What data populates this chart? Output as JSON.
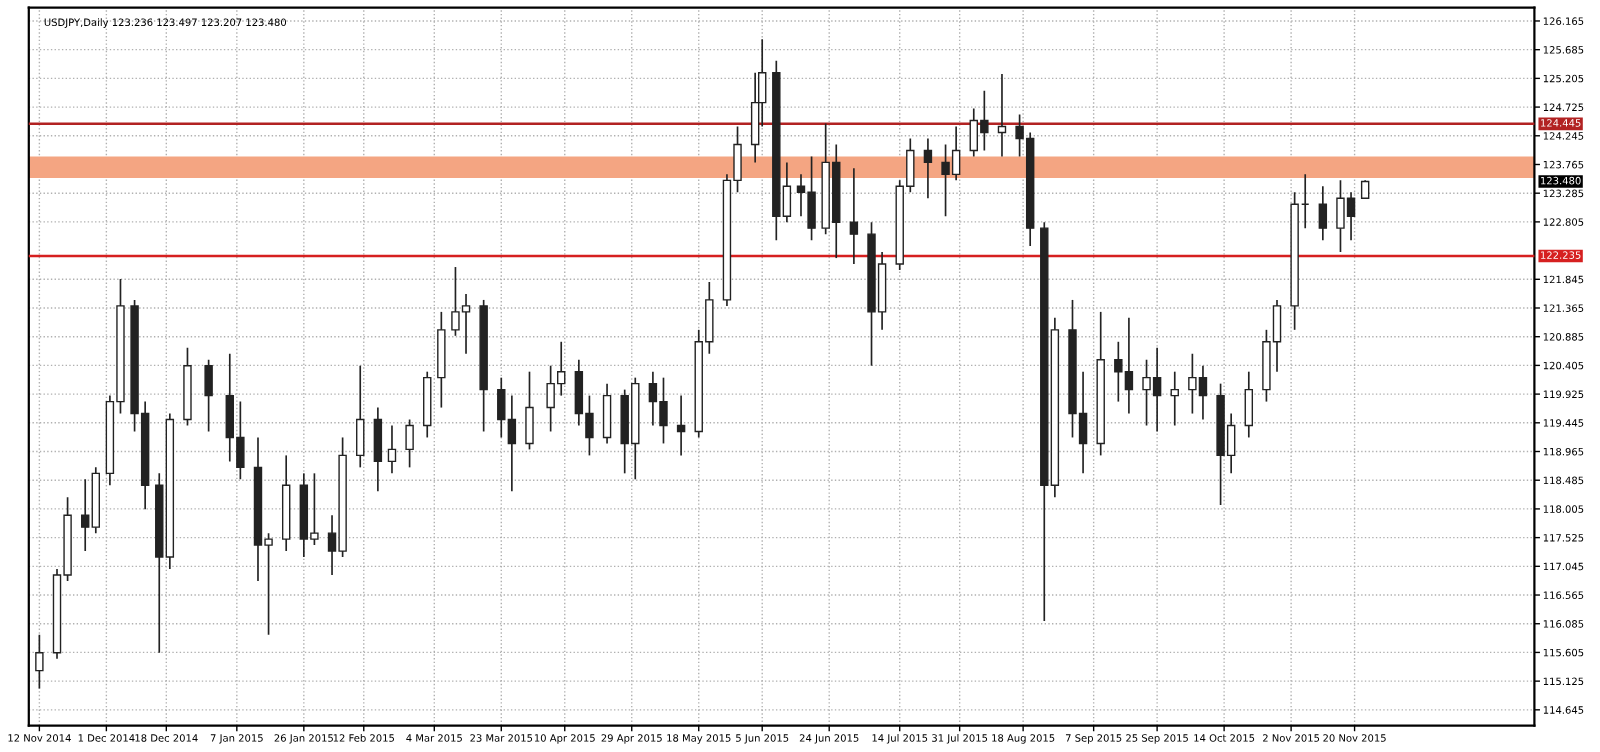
{
  "chart_data": {
    "type": "candlestick",
    "title": "USDJPY,Daily 123.236 123.497 123.207 123.480",
    "color": "#222222",
    "x": [
      "2014-11-12",
      "2014-11-17",
      "2014-11-20",
      "2014-11-25",
      "2014-11-28",
      "2014-12-02",
      "2014-12-05",
      "2014-12-09",
      "2014-12-12",
      "2014-12-16",
      "2014-12-19",
      "2014-12-24",
      "2014-12-30",
      "2015-01-05",
      "2015-01-08",
      "2015-01-13",
      "2015-01-16",
      "2015-01-21",
      "2015-01-26",
      "2015-01-29",
      "2015-02-03",
      "2015-02-06",
      "2015-02-11",
      "2015-02-16",
      "2015-02-20",
      "2015-02-25",
      "2015-03-02",
      "2015-03-06",
      "2015-03-10",
      "2015-03-13",
      "2015-03-18",
      "2015-03-23",
      "2015-03-26",
      "2015-03-31",
      "2015-04-06",
      "2015-04-09",
      "2015-04-14",
      "2015-04-17",
      "2015-04-22",
      "2015-04-27",
      "2015-04-30",
      "2015-05-05",
      "2015-05-08",
      "2015-05-13",
      "2015-05-18",
      "2015-05-21",
      "2015-05-26",
      "2015-05-29",
      "2015-06-03",
      "2015-06-05",
      "2015-06-09",
      "2015-06-12",
      "2015-06-16",
      "2015-06-19",
      "2015-06-23",
      "2015-06-26",
      "2015-07-01",
      "2015-07-06",
      "2015-07-09",
      "2015-07-14",
      "2015-07-17",
      "2015-07-22",
      "2015-07-27",
      "2015-07-30",
      "2015-08-04",
      "2015-08-07",
      "2015-08-12",
      "2015-08-17",
      "2015-08-20",
      "2015-08-24",
      "2015-08-27",
      "2015-09-01",
      "2015-09-04",
      "2015-09-09",
      "2015-09-14",
      "2015-09-17",
      "2015-09-22",
      "2015-09-25",
      "2015-09-30",
      "2015-10-05",
      "2015-10-08",
      "2015-10-13",
      "2015-10-16",
      "2015-10-21",
      "2015-10-26",
      "2015-10-29",
      "2015-11-03",
      "2015-11-06",
      "2015-11-11",
      "2015-11-16",
      "2015-11-19",
      "2015-11-23"
    ],
    "ohlc": [
      [
        115.3,
        115.9,
        115.0,
        115.6
      ],
      [
        115.6,
        117.0,
        115.5,
        116.9
      ],
      [
        116.9,
        118.2,
        116.8,
        117.9
      ],
      [
        117.9,
        118.5,
        117.3,
        117.7
      ],
      [
        117.7,
        118.7,
        117.6,
        118.6
      ],
      [
        118.6,
        119.9,
        118.4,
        119.8
      ],
      [
        119.8,
        121.85,
        119.6,
        121.4
      ],
      [
        121.4,
        121.5,
        119.3,
        119.6
      ],
      [
        119.6,
        119.8,
        118.0,
        118.4
      ],
      [
        118.4,
        118.6,
        115.6,
        117.2
      ],
      [
        117.2,
        119.6,
        117.0,
        119.5
      ],
      [
        119.5,
        120.7,
        119.4,
        120.4
      ],
      [
        120.4,
        120.5,
        119.3,
        119.9
      ],
      [
        119.9,
        120.6,
        118.8,
        119.2
      ],
      [
        119.2,
        119.8,
        118.5,
        118.7
      ],
      [
        118.7,
        119.2,
        116.8,
        117.4
      ],
      [
        117.4,
        117.6,
        115.9,
        117.5
      ],
      [
        117.5,
        118.9,
        117.3,
        118.4
      ],
      [
        118.4,
        118.6,
        117.2,
        117.5
      ],
      [
        117.5,
        118.6,
        117.4,
        117.6
      ],
      [
        117.6,
        117.9,
        116.9,
        117.3
      ],
      [
        117.3,
        119.2,
        117.2,
        118.9
      ],
      [
        118.9,
        120.4,
        118.7,
        119.5
      ],
      [
        119.5,
        119.7,
        118.3,
        118.8
      ],
      [
        118.8,
        119.4,
        118.6,
        119.0
      ],
      [
        119.0,
        119.5,
        118.7,
        119.4
      ],
      [
        119.4,
        120.3,
        119.2,
        120.2
      ],
      [
        120.2,
        121.3,
        119.7,
        121.0
      ],
      [
        121.0,
        122.05,
        120.9,
        121.3
      ],
      [
        121.3,
        121.6,
        120.6,
        121.4
      ],
      [
        121.4,
        121.5,
        119.3,
        120.0
      ],
      [
        120.0,
        120.2,
        119.2,
        119.5
      ],
      [
        119.5,
        119.9,
        118.3,
        119.1
      ],
      [
        119.1,
        120.3,
        119.0,
        119.7
      ],
      [
        119.7,
        120.4,
        119.3,
        120.1
      ],
      [
        120.1,
        120.8,
        119.9,
        120.3
      ],
      [
        120.3,
        120.5,
        119.4,
        119.6
      ],
      [
        119.6,
        119.9,
        118.9,
        119.2
      ],
      [
        119.2,
        120.1,
        119.1,
        119.9
      ],
      [
        119.9,
        120.0,
        118.6,
        119.1
      ],
      [
        119.1,
        120.2,
        118.5,
        120.1
      ],
      [
        120.1,
        120.3,
        119.4,
        119.8
      ],
      [
        119.8,
        120.2,
        119.1,
        119.4
      ],
      [
        119.4,
        119.9,
        118.9,
        119.3
      ],
      [
        119.3,
        121.0,
        119.2,
        120.8
      ],
      [
        120.8,
        121.8,
        120.6,
        121.5
      ],
      [
        121.5,
        123.6,
        121.4,
        123.5
      ],
      [
        123.5,
        124.4,
        123.3,
        124.1
      ],
      [
        124.1,
        125.3,
        123.8,
        124.8
      ],
      [
        124.8,
        125.86,
        124.4,
        125.3
      ],
      [
        125.3,
        125.5,
        122.5,
        122.9
      ],
      [
        122.9,
        123.8,
        122.8,
        123.4
      ],
      [
        123.4,
        123.6,
        122.9,
        123.3
      ],
      [
        123.3,
        123.9,
        122.5,
        122.7
      ],
      [
        122.7,
        124.45,
        122.6,
        123.8
      ],
      [
        123.8,
        124.1,
        122.2,
        122.8
      ],
      [
        122.8,
        123.7,
        122.1,
        122.6
      ],
      [
        122.6,
        122.8,
        120.4,
        121.3
      ],
      [
        121.3,
        122.3,
        121.0,
        122.1
      ],
      [
        122.1,
        123.5,
        122.0,
        123.4
      ],
      [
        123.4,
        124.2,
        123.3,
        124.0
      ],
      [
        124.0,
        124.2,
        123.2,
        123.8
      ],
      [
        123.8,
        124.1,
        122.9,
        123.6
      ],
      [
        123.6,
        124.4,
        123.5,
        124.0
      ],
      [
        124.0,
        124.7,
        123.9,
        124.5
      ],
      [
        124.5,
        125.0,
        124.0,
        124.3
      ],
      [
        124.3,
        125.28,
        123.9,
        124.4
      ],
      [
        124.4,
        124.6,
        123.9,
        124.2
      ],
      [
        124.2,
        124.3,
        122.4,
        122.7
      ],
      [
        122.7,
        122.8,
        116.13,
        118.4
      ],
      [
        118.4,
        121.2,
        118.2,
        121.0
      ],
      [
        121.0,
        121.5,
        119.2,
        119.6
      ],
      [
        119.6,
        120.3,
        118.6,
        119.1
      ],
      [
        119.1,
        121.3,
        118.9,
        120.5
      ],
      [
        120.5,
        120.8,
        119.8,
        120.3
      ],
      [
        120.3,
        121.2,
        119.6,
        120.0
      ],
      [
        120.0,
        120.5,
        119.4,
        120.2
      ],
      [
        120.2,
        120.7,
        119.3,
        119.9
      ],
      [
        119.9,
        120.3,
        119.4,
        120.0
      ],
      [
        120.0,
        120.6,
        119.6,
        120.2
      ],
      [
        120.2,
        120.4,
        119.5,
        119.9
      ],
      [
        119.9,
        120.1,
        118.07,
        118.9
      ],
      [
        118.9,
        119.6,
        118.6,
        119.4
      ],
      [
        119.4,
        120.3,
        119.2,
        120.0
      ],
      [
        120.0,
        121.0,
        119.8,
        120.8
      ],
      [
        120.8,
        121.5,
        120.3,
        121.4
      ],
      [
        121.4,
        123.3,
        121.0,
        123.1
      ],
      [
        123.1,
        123.6,
        122.7,
        123.1
      ],
      [
        123.1,
        123.4,
        122.5,
        122.7
      ],
      [
        122.7,
        123.5,
        122.3,
        123.2
      ],
      [
        123.2,
        123.3,
        122.5,
        122.9
      ],
      [
        123.2,
        123.5,
        123.2,
        123.48
      ]
    ],
    "xlim": [
      "2014-11-09",
      "2016-01-10"
    ],
    "xticks": [
      {
        "value": "2014-11-12",
        "label": "12 Nov 2014"
      },
      {
        "value": "2014-12-01",
        "label": "1 Dec 2014"
      },
      {
        "value": "2014-12-18",
        "label": "18 Dec 2014"
      },
      {
        "value": "2015-01-07",
        "label": "7 Jan 2015"
      },
      {
        "value": "2015-01-26",
        "label": "26 Jan 2015"
      },
      {
        "value": "2015-02-12",
        "label": "12 Feb 2015"
      },
      {
        "value": "2015-03-04",
        "label": "4 Mar 2015"
      },
      {
        "value": "2015-03-23",
        "label": "23 Mar 2015"
      },
      {
        "value": "2015-04-10",
        "label": "10 Apr 2015"
      },
      {
        "value": "2015-04-29",
        "label": "29 Apr 2015"
      },
      {
        "value": "2015-05-18",
        "label": "18 May 2015"
      },
      {
        "value": "2015-06-05",
        "label": "5 Jun 2015"
      },
      {
        "value": "2015-06-24",
        "label": "24 Jun 2015"
      },
      {
        "value": "2015-07-14",
        "label": "14 Jul 2015"
      },
      {
        "value": "2015-07-31",
        "label": "31 Jul 2015"
      },
      {
        "value": "2015-08-18",
        "label": "18 Aug 2015"
      },
      {
        "value": "2015-09-07",
        "label": "7 Sep 2015"
      },
      {
        "value": "2015-09-25",
        "label": "25 Sep 2015"
      },
      {
        "value": "2015-10-14",
        "label": "14 Oct 2015"
      },
      {
        "value": "2015-11-02",
        "label": "2 Nov 2015"
      },
      {
        "value": "2015-11-20",
        "label": "20 Nov 2015"
      }
    ],
    "ylim": [
      114.38,
      126.39
    ],
    "yticks": [
      {
        "value": 114.645,
        "label": "114.645"
      },
      {
        "value": 115.125,
        "label": "115.125"
      },
      {
        "value": 115.605,
        "label": "115.605"
      },
      {
        "value": 116.085,
        "label": "116.085"
      },
      {
        "value": 116.565,
        "label": "116.565"
      },
      {
        "value": 117.045,
        "label": "117.045"
      },
      {
        "value": 117.525,
        "label": "117.525"
      },
      {
        "value": 118.005,
        "label": "118.005"
      },
      {
        "value": 118.485,
        "label": "118.485"
      },
      {
        "value": 118.965,
        "label": "118.965"
      },
      {
        "value": 119.445,
        "label": "119.445"
      },
      {
        "value": 119.925,
        "label": "119.925"
      },
      {
        "value": 120.405,
        "label": "120.405"
      },
      {
        "value": 120.885,
        "label": "120.885"
      },
      {
        "value": 121.365,
        "label": "121.365"
      },
      {
        "value": 121.845,
        "label": "121.845"
      },
      {
        "value": 122.805,
        "label": "122.805"
      },
      {
        "value": 123.285,
        "label": "123.285"
      },
      {
        "value": 123.765,
        "label": "123.765"
      },
      {
        "value": 124.245,
        "label": "124.245"
      },
      {
        "value": 124.725,
        "label": "124.725"
      },
      {
        "value": 125.205,
        "label": "125.205"
      },
      {
        "value": 125.685,
        "label": "125.685"
      },
      {
        "value": 126.165,
        "label": "126.165"
      }
    ],
    "grid": true,
    "ref_lines": [
      {
        "axis": "y",
        "value": 124.445,
        "label": "124.445",
        "color": "#b22222"
      },
      {
        "axis": "y",
        "value": 122.235,
        "label": "122.235",
        "color": "#d62020"
      }
    ],
    "bands": [
      {
        "axis": "y",
        "from": 123.54,
        "to": 123.9,
        "color": "#f4a582"
      }
    ],
    "annotations": [
      "123.480"
    ]
  }
}
